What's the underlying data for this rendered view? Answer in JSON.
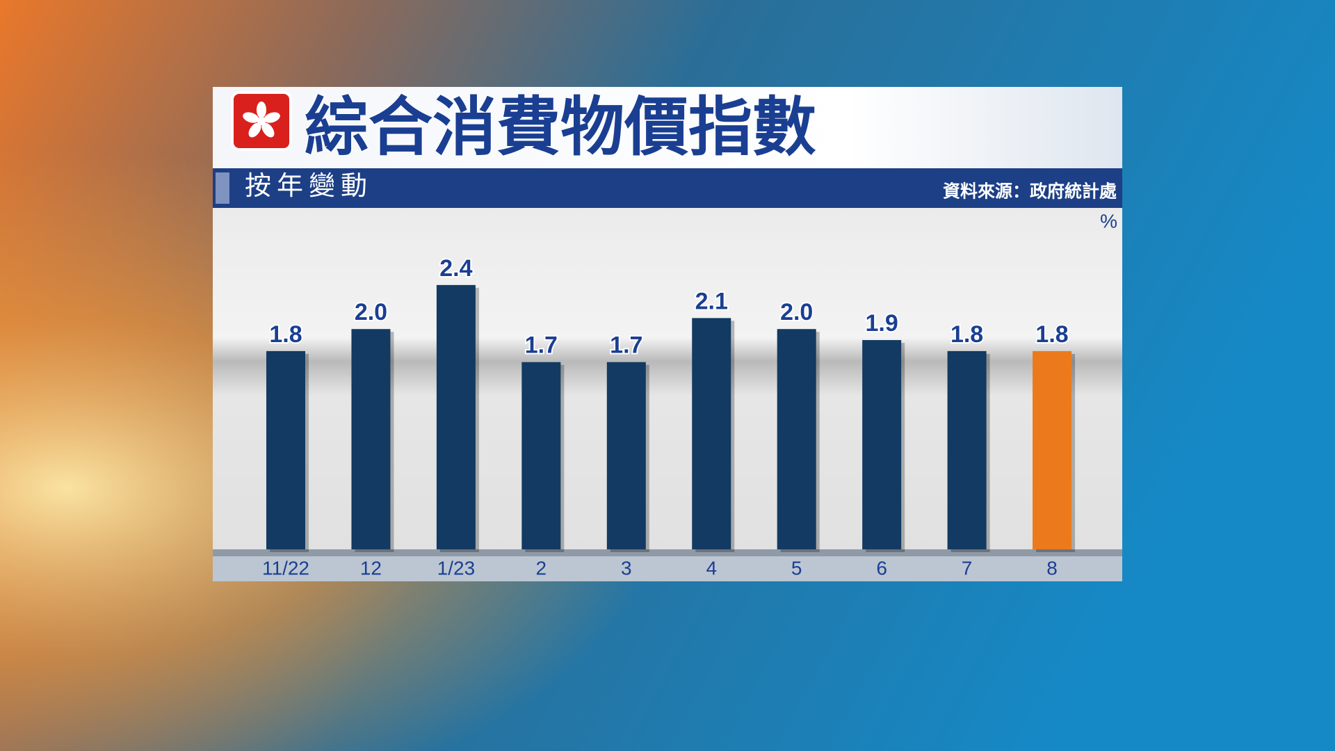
{
  "chart_data": {
    "type": "bar",
    "title": "綜合消費物價指數",
    "subtitle": "按年變動",
    "source": "資料來源：政府統計處",
    "unit": "%",
    "categories": [
      "11/22",
      "12",
      "1/23",
      "2",
      "3",
      "4",
      "5",
      "6",
      "7",
      "8"
    ],
    "values": [
      1.8,
      2.0,
      2.4,
      1.7,
      1.7,
      2.1,
      2.0,
      1.9,
      1.8,
      1.8
    ],
    "value_labels": [
      "1.8",
      "2.0",
      "2.4",
      "1.7",
      "1.7",
      "2.1",
      "2.0",
      "1.9",
      "1.8",
      "1.8"
    ],
    "colors": [
      "#123a62",
      "#123a62",
      "#123a62",
      "#123a62",
      "#123a62",
      "#123a62",
      "#123a62",
      "#123a62",
      "#123a62",
      "#ec7a1c"
    ],
    "ylim": [
      0,
      3.1
    ]
  }
}
